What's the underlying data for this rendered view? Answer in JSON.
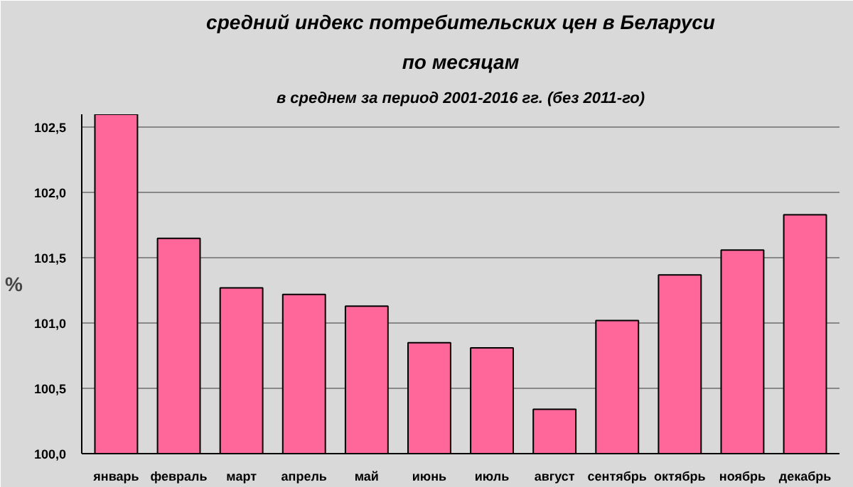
{
  "chart_data": {
    "type": "bar",
    "title": "средний индекс потребительских цен в Беларуси",
    "subtitle": "по месяцам",
    "annotations": [
      "в среднем за период 2001-2016 гг. (без 2011-го)"
    ],
    "ylabel": "%",
    "categories": [
      "январь",
      "февраль",
      "март",
      "апрель",
      "май",
      "июнь",
      "июль",
      "август",
      "сентябрь",
      "октябрь",
      "ноябрь",
      "декабрь"
    ],
    "values": [
      102.6,
      101.65,
      101.27,
      101.22,
      101.13,
      100.85,
      100.81,
      100.34,
      101.02,
      101.37,
      101.56,
      101.83
    ],
    "color": "#ff6699",
    "ylim": [
      100,
      102.6
    ],
    "yticks": [
      {
        "value": 100,
        "label": "100,0"
      },
      {
        "value": 100.5,
        "label": "100,5"
      },
      {
        "value": 101,
        "label": "101,0"
      },
      {
        "value": 101.5,
        "label": "101,5"
      },
      {
        "value": 102,
        "label": "102,0"
      },
      {
        "value": 102.5,
        "label": "102,5"
      }
    ],
    "grid": "y"
  }
}
